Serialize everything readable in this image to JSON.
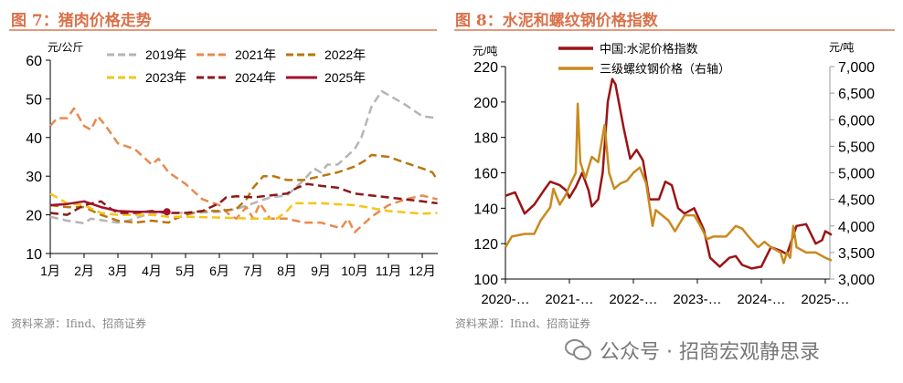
{
  "chart_data": [
    {
      "type": "line",
      "title": "图 7：猪肉价格走势",
      "ylabel": "元/公斤",
      "ylim": [
        10,
        60
      ],
      "yticks": [
        10,
        20,
        30,
        40,
        50,
        60
      ],
      "categories": [
        "1月",
        "2月",
        "3月",
        "4月",
        "5月",
        "6月",
        "7月",
        "8月",
        "9月",
        "10月",
        "11月",
        "12月"
      ],
      "x_unit": "month (1 = 1月 start)",
      "legend": "top",
      "grid": false,
      "series": [
        {
          "name": "2019年",
          "color": "#b5b5b5",
          "dash": true,
          "x": [
            1,
            1.5,
            2,
            2.2,
            3,
            3.3,
            4,
            5,
            6,
            6.5,
            7,
            7.5,
            8,
            8.5,
            8.8,
            9,
            9.2,
            9.5,
            10,
            10.2,
            10.5,
            10.8,
            11,
            11.5,
            12,
            12.45
          ],
          "y": [
            19.5,
            18.5,
            17.8,
            19,
            18,
            18.5,
            20.5,
            20.5,
            20.8,
            21.5,
            23,
            24.5,
            25,
            29,
            32,
            31,
            33,
            33,
            37,
            40,
            48,
            52,
            51,
            48.5,
            45.5,
            45
          ]
        },
        {
          "name": "2021年",
          "color": "#e88a4f",
          "dash": true,
          "x": [
            1,
            1.2,
            1.5,
            1.7,
            2,
            2.2,
            2.4,
            2.6,
            3,
            3.5,
            4,
            4.2,
            4.5,
            5,
            5.5,
            6,
            6.3,
            6.5,
            6.8,
            7,
            7.2,
            7.5,
            8,
            8.5,
            9,
            9.6,
            9.8,
            10,
            10.5,
            11,
            11.5,
            12,
            12.45
          ],
          "y": [
            43,
            45,
            45,
            47.5,
            43,
            42,
            45.5,
            43.5,
            38.5,
            37,
            33,
            34.5,
            31,
            28,
            24,
            22.5,
            20,
            19,
            22,
            19,
            23,
            19,
            19,
            18,
            18,
            16.5,
            19,
            15.5,
            19.5,
            22.5,
            24,
            25,
            24
          ]
        },
        {
          "name": "2022年",
          "color": "#b8760f",
          "dash": true,
          "x": [
            1,
            1.5,
            2,
            2.5,
            3,
            3.5,
            4,
            4.5,
            4.7,
            5,
            5.5,
            6,
            6.5,
            6.8,
            7,
            7.3,
            7.6,
            8,
            8.5,
            9,
            9.5,
            10,
            10.3,
            10.5,
            11,
            11.5,
            12,
            12.3,
            12.45
          ],
          "y": [
            22.5,
            22,
            22,
            20,
            18.5,
            18,
            18.5,
            18,
            19,
            20,
            21,
            21,
            21.5,
            24,
            27,
            30,
            30,
            29,
            29,
            30,
            31,
            32.5,
            34,
            35.5,
            35,
            33.5,
            32,
            31,
            29
          ]
        },
        {
          "name": "2023年",
          "color": "#f5c518",
          "dash": true,
          "x": [
            1,
            1.5,
            2,
            2.5,
            3,
            4,
            4.5,
            5,
            6,
            7,
            7.7,
            8,
            8.2,
            9,
            10,
            11,
            12,
            12.45
          ],
          "y": [
            25.5,
            23,
            22.5,
            20.5,
            20,
            20,
            19.5,
            19.5,
            19.3,
            19,
            19,
            21,
            23,
            23,
            22.5,
            21,
            20.3,
            20.5
          ]
        },
        {
          "name": "2024年",
          "color": "#8b1a1a",
          "dash": true,
          "x": [
            1,
            1.5,
            2,
            2.5,
            2.8,
            3,
            3.5,
            4,
            4.5,
            5,
            5.5,
            6,
            6.2,
            6.5,
            7,
            7.5,
            8,
            8.3,
            8.6,
            9,
            9.5,
            10,
            10.5,
            11,
            11.5,
            12,
            12.45
          ],
          "y": [
            20.5,
            20,
            22.5,
            23.5,
            21.5,
            20.5,
            20.5,
            21,
            20.5,
            20.5,
            21,
            23,
            24.5,
            24.8,
            24.5,
            25,
            25.5,
            27,
            28,
            27.5,
            27,
            25.5,
            25,
            24.5,
            24,
            23.5,
            23
          ]
        },
        {
          "name": "2025年",
          "color": "#a3102b",
          "dash": false,
          "x": [
            1,
            1.5,
            2,
            2.5,
            3,
            3.5,
            4,
            4.45
          ],
          "y": [
            22.5,
            22.8,
            23.5,
            22,
            21,
            20.8,
            20.8,
            20.8
          ]
        }
      ]
    },
    {
      "type": "line",
      "title": "图 8：水泥和螺纹钢价格指数",
      "ylabel": "元/吨",
      "ylabel_right": "元/吨",
      "ylim": [
        100,
        220
      ],
      "yticks": [
        100,
        120,
        140,
        160,
        180,
        200,
        220
      ],
      "ylim_right": [
        3000,
        7000
      ],
      "yticks_right": [
        "3,000",
        "3,500",
        "4,000",
        "4,500",
        "5,000",
        "5,500",
        "6,000",
        "6,500",
        "7,000"
      ],
      "xticks": [
        "2020-…",
        "2021-…",
        "2022-…",
        "2023-…",
        "2024-…",
        "2025-…"
      ],
      "legend": "top",
      "grid": false,
      "series": [
        {
          "name": "中国:水泥价格指数",
          "color": "#9b1414",
          "axis": "left",
          "x": [
            2020.0,
            2020.15,
            2020.3,
            2020.45,
            2020.6,
            2020.7,
            2020.85,
            2020.95,
            2021.0,
            2021.1,
            2021.2,
            2021.3,
            2021.35,
            2021.45,
            2021.52,
            2021.6,
            2021.67,
            2021.72,
            2021.85,
            2021.95,
            2022.05,
            2022.15,
            2022.25,
            2022.4,
            2022.5,
            2022.6,
            2022.7,
            2022.8,
            2022.95,
            2023.1,
            2023.2,
            2023.35,
            2023.5,
            2023.6,
            2023.7,
            2023.85,
            2024.0,
            2024.15,
            2024.3,
            2024.4,
            2024.55,
            2024.7,
            2024.85,
            2024.95,
            2025.0,
            2025.1
          ],
          "y": [
            147,
            149,
            137,
            142,
            150,
            155,
            153,
            150,
            146,
            152,
            160,
            150,
            141,
            145,
            160,
            200,
            213,
            210,
            185,
            168,
            173,
            167,
            145,
            145,
            155,
            153,
            140,
            137,
            140,
            128,
            112,
            107,
            112,
            113,
            108,
            106,
            107,
            118,
            116,
            114,
            130,
            131,
            120,
            122,
            127,
            125
          ]
        },
        {
          "name": "三级螺纹钢价格（右轴）",
          "color": "#c98a1e",
          "axis": "right",
          "x": [
            2020.0,
            2020.1,
            2020.3,
            2020.45,
            2020.55,
            2020.7,
            2020.75,
            2020.85,
            2020.95,
            2021.0,
            2021.1,
            2021.13,
            2021.17,
            2021.25,
            2021.35,
            2021.45,
            2021.55,
            2021.62,
            2021.7,
            2021.8,
            2021.9,
            2022.0,
            2022.1,
            2022.2,
            2022.3,
            2022.35,
            2022.45,
            2022.55,
            2022.65,
            2022.8,
            2022.95,
            2023.05,
            2023.15,
            2023.25,
            2023.45,
            2023.6,
            2023.7,
            2023.8,
            2023.95,
            2024.05,
            2024.15,
            2024.3,
            2024.35,
            2024.4,
            2024.45,
            2024.5,
            2024.55,
            2024.7,
            2024.85,
            2025.0,
            2025.1
          ],
          "y": [
            3600,
            3800,
            3850,
            3850,
            4100,
            4350,
            4700,
            4400,
            4600,
            4750,
            5000,
            6300,
            5200,
            4900,
            5300,
            5200,
            5900,
            5000,
            4700,
            4800,
            4850,
            5000,
            5100,
            4800,
            4000,
            4300,
            4200,
            4100,
            3900,
            4200,
            4200,
            4000,
            3750,
            3800,
            3800,
            4000,
            3950,
            3800,
            3600,
            3700,
            3600,
            3500,
            3300,
            3500,
            3400,
            4000,
            3600,
            3500,
            3500,
            3400,
            3350
          ]
        }
      ]
    }
  ],
  "footer": {
    "source_left": "资料来源：Ifind、招商证券",
    "source_right": "资料来源：Ifind、招商证券",
    "watermark": "公众号 · 招商宏观静思录"
  }
}
